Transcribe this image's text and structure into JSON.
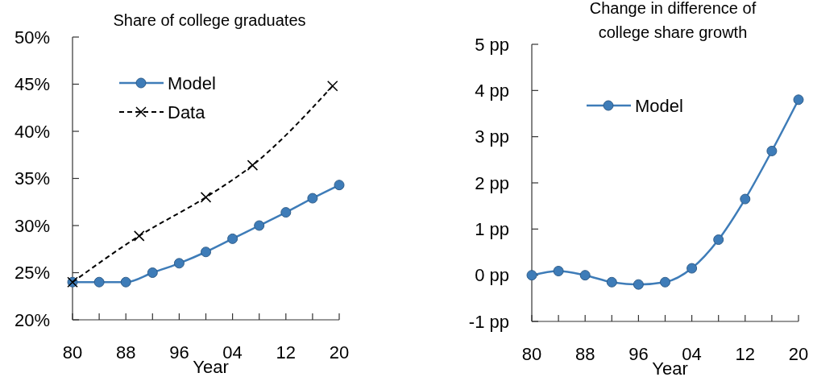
{
  "chart_data": [
    {
      "type": "line",
      "title": "Share of college graduates",
      "xlabel": "Year",
      "xlim": [
        1980,
        2020
      ],
      "xticks": [
        {
          "value": 1980,
          "label": "80"
        },
        {
          "value": 1984,
          "label": null
        },
        {
          "value": 1988,
          "label": "88"
        },
        {
          "value": 1992,
          "label": null
        },
        {
          "value": 1996,
          "label": "96"
        },
        {
          "value": 2000,
          "label": null
        },
        {
          "value": 2004,
          "label": "04"
        },
        {
          "value": 2008,
          "label": null
        },
        {
          "value": 2012,
          "label": "12"
        },
        {
          "value": 2016,
          "label": null
        },
        {
          "value": 2020,
          "label": "20"
        }
      ],
      "ylim": [
        20,
        50
      ],
      "yticks": [
        {
          "value": 20,
          "label": "20%"
        },
        {
          "value": 25,
          "label": "25%"
        },
        {
          "value": 30,
          "label": "30%"
        },
        {
          "value": 35,
          "label": "35%"
        },
        {
          "value": 40,
          "label": "40%"
        },
        {
          "value": 45,
          "label": "45%"
        },
        {
          "value": 50,
          "label": "50%"
        }
      ],
      "legend": "top left",
      "grid": false,
      "series": [
        {
          "name": "Model",
          "color": "#3e7cb8",
          "marker": "circle",
          "line_style": "solid",
          "x": [
            1980,
            1984,
            1988,
            1992,
            1996,
            2000,
            2004,
            2008,
            2012,
            2016,
            2020
          ],
          "values": [
            24.0,
            24.0,
            24.0,
            25.0,
            26.0,
            27.2,
            28.6,
            30.0,
            31.4,
            32.9,
            34.3
          ]
        },
        {
          "name": "Data",
          "color": "#000000",
          "marker": "cross",
          "line_style": "dashed",
          "x": [
            1980,
            1990,
            2000,
            2007,
            2019
          ],
          "values": [
            24.0,
            28.9,
            33.0,
            36.4,
            44.8
          ]
        }
      ]
    },
    {
      "type": "line",
      "title": "Change in difference of\ncollege share growth",
      "xlabel": "Year",
      "xlim": [
        1980,
        2020
      ],
      "xticks": [
        {
          "value": 1980,
          "label": "80"
        },
        {
          "value": 1984,
          "label": null
        },
        {
          "value": 1988,
          "label": "88"
        },
        {
          "value": 1992,
          "label": null
        },
        {
          "value": 1996,
          "label": "96"
        },
        {
          "value": 2000,
          "label": null
        },
        {
          "value": 2004,
          "label": "04"
        },
        {
          "value": 2008,
          "label": null
        },
        {
          "value": 2012,
          "label": "12"
        },
        {
          "value": 2016,
          "label": null
        },
        {
          "value": 2020,
          "label": "20"
        }
      ],
      "ylim": [
        -1,
        5
      ],
      "yticks": [
        {
          "value": -1,
          "label": "-1 pp"
        },
        {
          "value": 0,
          "label": "0 pp"
        },
        {
          "value": 1,
          "label": "1 pp"
        },
        {
          "value": 2,
          "label": "2 pp"
        },
        {
          "value": 3,
          "label": "3 pp"
        },
        {
          "value": 4,
          "label": "4 pp"
        },
        {
          "value": 5,
          "label": "5 pp"
        }
      ],
      "legend": "top left",
      "grid": false,
      "series": [
        {
          "name": "Model",
          "color": "#3e7cb8",
          "marker": "circle",
          "line_style": "solid",
          "x": [
            1980,
            1984,
            1988,
            1992,
            1996,
            2000,
            2004,
            2008,
            2012,
            2016,
            2020
          ],
          "values": [
            0.0,
            0.09,
            0.0,
            -0.15,
            -0.2,
            -0.15,
            0.15,
            0.77,
            1.65,
            2.69,
            3.8
          ]
        }
      ]
    }
  ]
}
